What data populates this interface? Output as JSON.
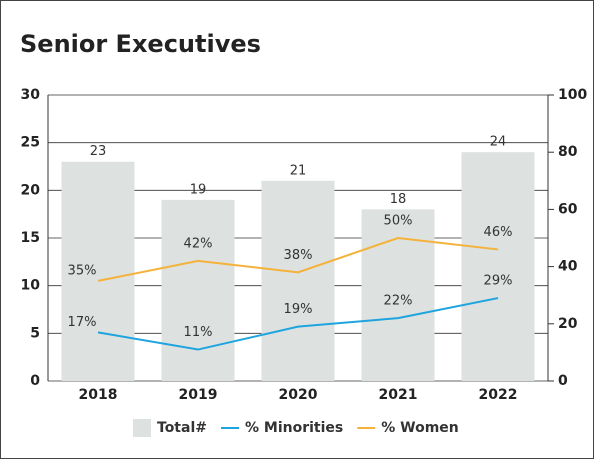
{
  "chart_data": {
    "type": "bar-line",
    "title": "Senior Executives",
    "categories": [
      "2018",
      "2019",
      "2020",
      "2021",
      "2022"
    ],
    "series": [
      {
        "name": "Total#",
        "type": "bar",
        "color": "#dde1e0",
        "values": [
          23,
          19,
          21,
          18,
          24
        ]
      },
      {
        "name": "% Minorities",
        "type": "line",
        "axis": "y2",
        "color": "#1ea4de",
        "values": [
          17,
          11,
          19,
          22,
          29
        ],
        "value_labels": [
          "17%",
          "11%",
          "19%",
          "22%",
          "29%"
        ]
      },
      {
        "name": "% Women",
        "type": "line",
        "axis": "y2",
        "color": "#f5b23a",
        "values": [
          35,
          42,
          38,
          50,
          46
        ],
        "value_labels": [
          "35%",
          "42%",
          "38%",
          "50%",
          "46%"
        ]
      }
    ],
    "ylim": [
      0,
      30
    ],
    "yticks": [
      0,
      5,
      10,
      15,
      20,
      25,
      30
    ],
    "y2lim": [
      0,
      100
    ],
    "y2ticks": [
      0,
      20,
      40,
      60,
      80,
      100
    ],
    "grid": true,
    "legend": "bottom"
  }
}
